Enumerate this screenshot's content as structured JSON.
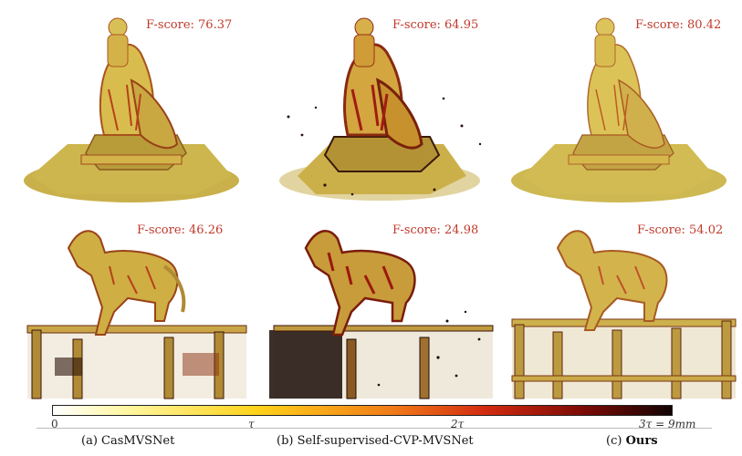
{
  "panels": [
    {
      "method": "CasMVSNet",
      "subject": "statue",
      "fscore_label": "F-score: 76.37"
    },
    {
      "method": "Self-supervised-CVP-MVSNet",
      "subject": "statue",
      "fscore_label": "F-score: 64.95"
    },
    {
      "method": "Ours",
      "subject": "statue",
      "fscore_label": "F-score: 80.42"
    },
    {
      "method": "CasMVSNet",
      "subject": "horse",
      "fscore_label": "F-score: 46.26"
    },
    {
      "method": "Self-supervised-CVP-MVSNet",
      "subject": "horse",
      "fscore_label": "F-score: 24.98"
    },
    {
      "method": "Ours",
      "subject": "horse",
      "fscore_label": "F-score: 54.02"
    }
  ],
  "colorbar": {
    "ticks": [
      "0",
      "τ",
      "2τ",
      "3τ = 9mm"
    ],
    "colors": [
      "#ffffff",
      "#fff6a0",
      "#ffd21a",
      "#f07a18",
      "#d22a10",
      "#7a0a05",
      "#120404"
    ]
  },
  "captions": {
    "a_prefix": "(a)",
    "a_label": "CasMVSNet",
    "b_prefix": "(b)",
    "b_label": "Self-supervised-CVP-MVSNet",
    "c_prefix": "(c)",
    "c_label": "Ours"
  },
  "colors": {
    "fscore_text": "#c0392b",
    "base_yellow": "#d8c24a",
    "error_red": "#c0391b",
    "dark_error": "#2a0c06"
  }
}
